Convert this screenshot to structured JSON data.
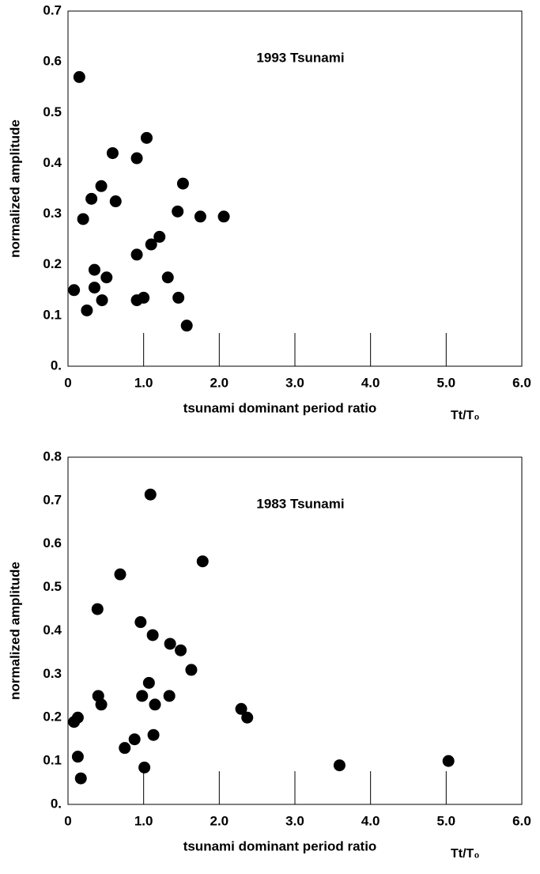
{
  "chart_data": [
    {
      "type": "scatter",
      "title": "1993 Tsunami",
      "x_label": "tsunami dominant period ratio",
      "x_unit": "Tt/T₀",
      "y_label": "normalized amplitude",
      "color": "#000000",
      "xlim": [
        0,
        6
      ],
      "xticks": [
        0,
        {
          "value": 1,
          "label": "1.0"
        },
        {
          "value": 2,
          "label": "2.0"
        },
        {
          "value": 3,
          "label": "3.0"
        },
        {
          "value": 4,
          "label": "4.0"
        },
        {
          "value": 5,
          "label": "5.0"
        },
        {
          "value": 6,
          "label": "6.0"
        }
      ],
      "ylim": [
        0,
        0.7
      ],
      "yticks": [
        {
          "value": 0,
          "label": "0."
        },
        0.1,
        0.2,
        0.3,
        0.4,
        0.5,
        0.6,
        0.7
      ],
      "series": [
        {
          "name": null,
          "color": "#000000",
          "x": [
            0.15,
            0.08,
            0.2,
            0.25,
            0.31,
            0.35,
            0.35,
            0.44,
            0.45,
            0.51,
            0.59,
            0.63,
            0.91,
            0.91,
            0.91,
            1.0,
            1.04,
            1.1,
            1.21,
            1.32,
            1.45,
            1.46,
            1.52,
            1.57,
            1.75,
            2.06
          ],
          "values": [
            0.57,
            0.15,
            0.29,
            0.11,
            0.33,
            0.19,
            0.155,
            0.355,
            0.13,
            0.175,
            0.42,
            0.325,
            0.41,
            0.22,
            0.13,
            0.135,
            0.45,
            0.24,
            0.255,
            0.175,
            0.305,
            0.135,
            0.36,
            0.08,
            0.295,
            0.295
          ]
        }
      ]
    },
    {
      "type": "scatter",
      "title": "1983 Tsunami",
      "x_label": "tsunami dominant period ratio",
      "x_unit": "Tt/T₀",
      "y_label": "normalized amplitude",
      "color": "#000000",
      "xlim": [
        0,
        6
      ],
      "xticks": [
        0,
        {
          "value": 1,
          "label": "1.0"
        },
        {
          "value": 2,
          "label": "2.0"
        },
        {
          "value": 3,
          "label": "3.0"
        },
        {
          "value": 4,
          "label": "4.0"
        },
        {
          "value": 5,
          "label": "5.0"
        },
        {
          "value": 6,
          "label": "6.0"
        }
      ],
      "ylim": [
        0,
        0.8
      ],
      "yticks": [
        {
          "value": 0,
          "label": "0."
        },
        0.1,
        0.2,
        0.3,
        0.4,
        0.5,
        0.6,
        0.7,
        0.8
      ],
      "series": [
        {
          "name": null,
          "color": "#000000",
          "x": [
            1.09,
            0.08,
            0.13,
            0.13,
            0.17,
            0.39,
            0.4,
            0.44,
            0.69,
            0.75,
            0.88,
            0.96,
            0.98,
            1.01,
            1.07,
            1.12,
            1.13,
            1.15,
            1.34,
            1.35,
            1.49,
            1.63,
            1.78,
            2.29,
            2.37,
            3.59,
            5.03
          ],
          "values": [
            0.714,
            0.19,
            0.2,
            0.11,
            0.06,
            0.45,
            0.25,
            0.23,
            0.53,
            0.13,
            0.15,
            0.42,
            0.25,
            0.085,
            0.28,
            0.39,
            0.16,
            0.23,
            0.25,
            0.37,
            0.355,
            0.31,
            0.56,
            0.22,
            0.2,
            0.09,
            0.1
          ]
        }
      ]
    }
  ]
}
